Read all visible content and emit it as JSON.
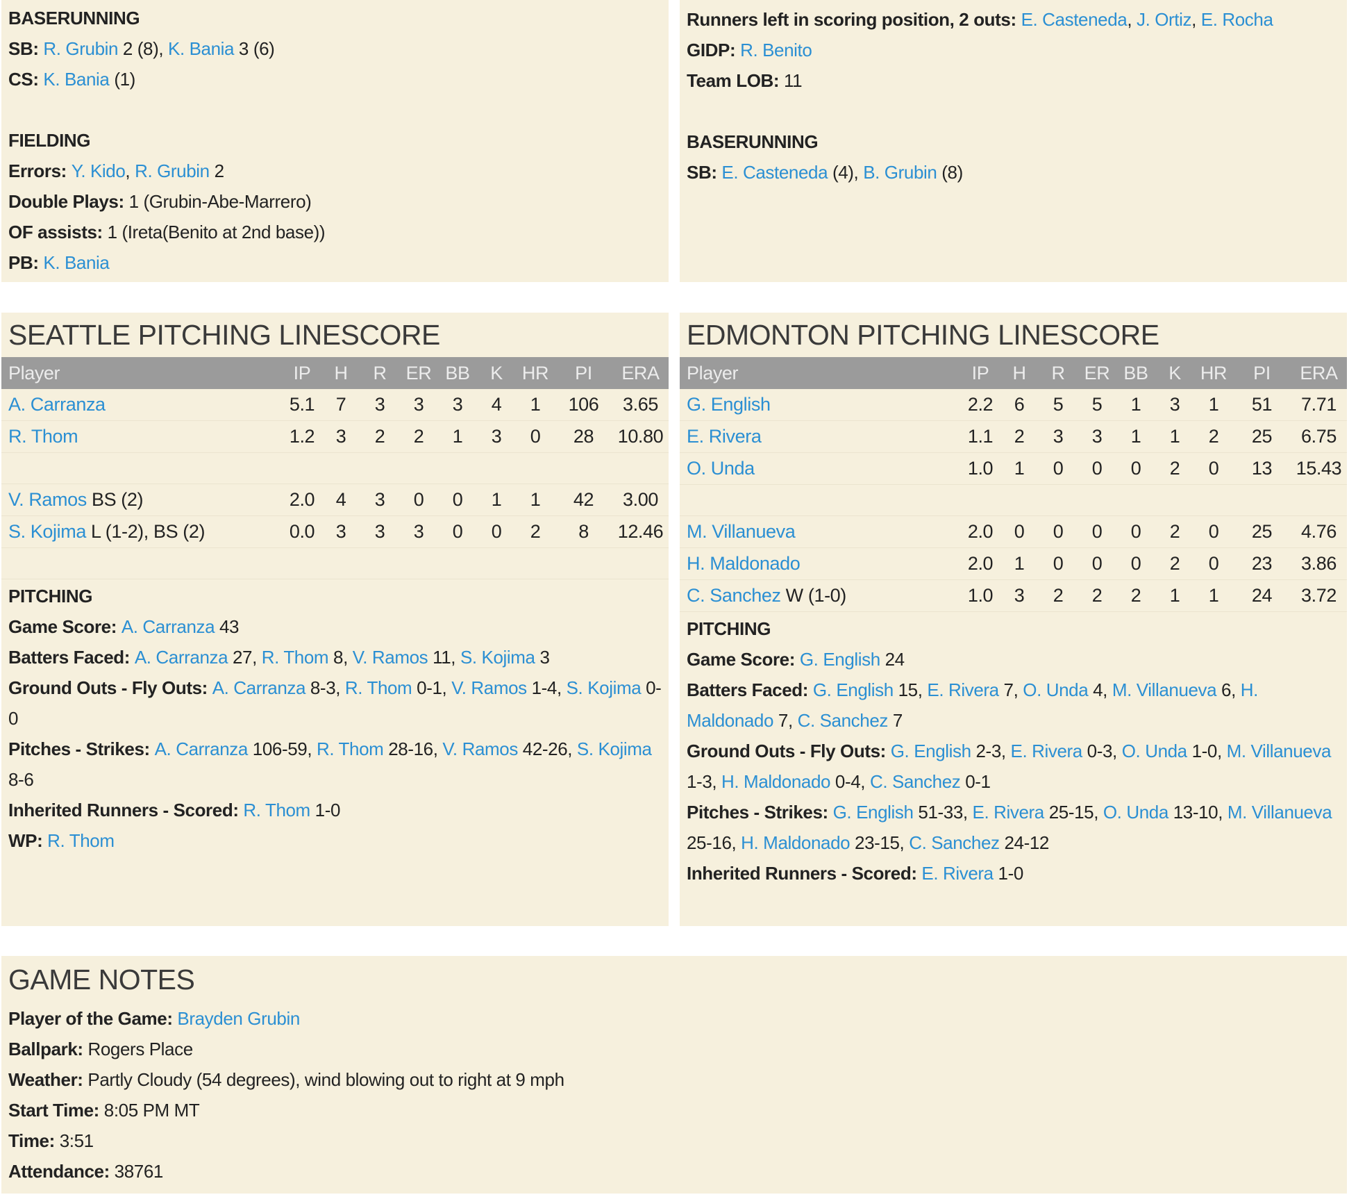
{
  "colors": {
    "background": "#f6f0dd",
    "link": "#2b8fd3",
    "table_header": "#9b9b9b"
  },
  "seattle_notes": [
    [
      {
        "b": "BASERUNNING"
      }
    ],
    [
      {
        "b": "SB: "
      },
      {
        "a": "R. Grubin"
      },
      {
        "t": " 2 (8), "
      },
      {
        "a": "K. Bania"
      },
      {
        "t": " 3 (6)"
      }
    ],
    [
      {
        "b": "CS: "
      },
      {
        "a": "K. Bania"
      },
      {
        "t": " (1)"
      }
    ],
    [],
    [
      {
        "b": "FIELDING"
      }
    ],
    [
      {
        "b": "Errors: "
      },
      {
        "a": "Y. Kido"
      },
      {
        "t": ", "
      },
      {
        "a": "R. Grubin"
      },
      {
        "t": " 2"
      }
    ],
    [
      {
        "b": "Double Plays: "
      },
      {
        "t": "1 (Grubin-Abe-Marrero)"
      }
    ],
    [
      {
        "b": "OF assists: "
      },
      {
        "t": "1 (Ireta(Benito at 2nd base))"
      }
    ],
    [
      {
        "b": "PB: "
      },
      {
        "a": "K. Bania"
      }
    ]
  ],
  "edmonton_notes": [
    [
      {
        "b": "Runners left in scoring position, 2 outs: "
      },
      {
        "a": "E. Casteneda"
      },
      {
        "t": ", "
      },
      {
        "a": "J. Ortiz"
      },
      {
        "t": ", "
      },
      {
        "a": "E. Rocha"
      }
    ],
    [
      {
        "b": "GIDP: "
      },
      {
        "a": "R. Benito"
      }
    ],
    [
      {
        "b": "Team LOB: "
      },
      {
        "t": "11"
      }
    ],
    [],
    [
      {
        "b": "BASERUNNING"
      }
    ],
    [
      {
        "b": "SB: "
      },
      {
        "a": "E. Casteneda"
      },
      {
        "t": " (4), "
      },
      {
        "a": "B. Grubin"
      },
      {
        "t": " (8)"
      }
    ]
  ],
  "columns": [
    "Player",
    "IP",
    "H",
    "R",
    "ER",
    "BB",
    "K",
    "HR",
    "PI",
    "ERA"
  ],
  "seattle": {
    "title": "SEATTLE PITCHING LINESCORE",
    "rows": [
      {
        "player": "A. Carranza",
        "note": "",
        "stats": [
          "5.1",
          "7",
          "3",
          "3",
          "3",
          "4",
          "1",
          "106",
          "3.65"
        ]
      },
      {
        "player": "R. Thom",
        "note": "",
        "stats": [
          "1.2",
          "3",
          "2",
          "2",
          "1",
          "3",
          "0",
          "28",
          "10.80"
        ]
      },
      {
        "spacer": true
      },
      {
        "player": "V. Ramos",
        "note": " BS (2)",
        "stats": [
          "2.0",
          "4",
          "3",
          "0",
          "0",
          "1",
          "1",
          "42",
          "3.00"
        ]
      },
      {
        "player": "S. Kojima",
        "note": " L (1-2), BS (2)",
        "stats": [
          "0.0",
          "3",
          "3",
          "3",
          "0",
          "0",
          "2",
          "8",
          "12.46"
        ]
      },
      {
        "spacer": true
      }
    ],
    "pitching": [
      [
        {
          "b": "PITCHING"
        }
      ],
      [
        {
          "b": "Game Score: "
        },
        {
          "a": "A. Carranza"
        },
        {
          "t": " 43"
        }
      ],
      [
        {
          "b": "Batters Faced: "
        },
        {
          "a": "A. Carranza"
        },
        {
          "t": " 27, "
        },
        {
          "a": "R. Thom"
        },
        {
          "t": " 8, "
        },
        {
          "a": "V. Ramos"
        },
        {
          "t": " 11, "
        },
        {
          "a": "S. Kojima"
        },
        {
          "t": " 3"
        }
      ],
      [
        {
          "b": "Ground Outs - Fly Outs: "
        },
        {
          "a": "A. Carranza"
        },
        {
          "t": " 8-3, "
        },
        {
          "a": "R. Thom"
        },
        {
          "t": " 0-1, "
        },
        {
          "a": "V. Ramos"
        },
        {
          "t": " 1-4, "
        },
        {
          "a": "S. Kojima"
        },
        {
          "t": " 0-0"
        }
      ],
      [
        {
          "b": "Pitches - Strikes: "
        },
        {
          "a": "A. Carranza"
        },
        {
          "t": " 106-59, "
        },
        {
          "a": "R. Thom"
        },
        {
          "t": " 28-16, "
        },
        {
          "a": "V. Ramos"
        },
        {
          "t": " 42-26, "
        },
        {
          "a": "S. Kojima"
        },
        {
          "t": " 8-6"
        }
      ],
      [
        {
          "b": "Inherited Runners - Scored: "
        },
        {
          "a": "R. Thom"
        },
        {
          "t": " 1-0"
        }
      ],
      [
        {
          "b": "WP: "
        },
        {
          "a": "R. Thom"
        }
      ]
    ]
  },
  "edmonton": {
    "title": "EDMONTON PITCHING LINESCORE",
    "rows": [
      {
        "player": "G. English",
        "note": "",
        "stats": [
          "2.2",
          "6",
          "5",
          "5",
          "1",
          "3",
          "1",
          "51",
          "7.71"
        ]
      },
      {
        "player": "E. Rivera",
        "note": "",
        "stats": [
          "1.1",
          "2",
          "3",
          "3",
          "1",
          "1",
          "2",
          "25",
          "6.75"
        ]
      },
      {
        "player": "O. Unda",
        "note": "",
        "stats": [
          "1.0",
          "1",
          "0",
          "0",
          "0",
          "2",
          "0",
          "13",
          "15.43"
        ]
      },
      {
        "spacer": true
      },
      {
        "player": "M. Villanueva",
        "note": "",
        "stats": [
          "2.0",
          "0",
          "0",
          "0",
          "0",
          "2",
          "0",
          "25",
          "4.76"
        ]
      },
      {
        "player": "H. Maldonado",
        "note": "",
        "stats": [
          "2.0",
          "1",
          "0",
          "0",
          "0",
          "2",
          "0",
          "23",
          "3.86"
        ]
      },
      {
        "player": "C. Sanchez",
        "note": " W (1-0)",
        "stats": [
          "1.0",
          "3",
          "2",
          "2",
          "2",
          "1",
          "1",
          "24",
          "3.72"
        ]
      }
    ],
    "pitching": [
      [
        {
          "b": "PITCHING"
        }
      ],
      [
        {
          "b": "Game Score: "
        },
        {
          "a": "G. English"
        },
        {
          "t": " 24"
        }
      ],
      [
        {
          "b": "Batters Faced: "
        },
        {
          "a": "G. English"
        },
        {
          "t": " 15, "
        },
        {
          "a": "E. Rivera"
        },
        {
          "t": " 7, "
        },
        {
          "a": "O. Unda"
        },
        {
          "t": " 4, "
        },
        {
          "a": "M. Villanueva"
        },
        {
          "t": " 6, "
        },
        {
          "a": "H. Maldonado"
        },
        {
          "t": " 7, "
        },
        {
          "a": "C. Sanchez"
        },
        {
          "t": " 7"
        }
      ],
      [
        {
          "b": "Ground Outs - Fly Outs: "
        },
        {
          "a": "G. English"
        },
        {
          "t": " 2-3, "
        },
        {
          "a": "E. Rivera"
        },
        {
          "t": " 0-3, "
        },
        {
          "a": "O. Unda"
        },
        {
          "t": " 1-0, "
        },
        {
          "a": "M. Villanueva"
        },
        {
          "t": " 1-3, "
        },
        {
          "a": "H. Maldonado"
        },
        {
          "t": " 0-4, "
        },
        {
          "a": "C. Sanchez"
        },
        {
          "t": " 0-1"
        }
      ],
      [
        {
          "b": "Pitches - Strikes: "
        },
        {
          "a": "G. English"
        },
        {
          "t": " 51-33, "
        },
        {
          "a": "E. Rivera"
        },
        {
          "t": " 25-15, "
        },
        {
          "a": "O. Unda"
        },
        {
          "t": " 13-10, "
        },
        {
          "a": "M. Villanueva"
        },
        {
          "t": " 25-16, "
        },
        {
          "a": "H. Maldonado"
        },
        {
          "t": " 23-15, "
        },
        {
          "a": "C. Sanchez"
        },
        {
          "t": " 24-12"
        }
      ],
      [
        {
          "b": "Inherited Runners - Scored: "
        },
        {
          "a": "E. Rivera"
        },
        {
          "t": " 1-0"
        }
      ]
    ]
  },
  "game_notes": {
    "title": "GAME NOTES",
    "lines": [
      [
        {
          "b": "Player of the Game: "
        },
        {
          "a": "Brayden Grubin"
        }
      ],
      [
        {
          "b": "Ballpark: "
        },
        {
          "t": "Rogers Place"
        }
      ],
      [
        {
          "b": "Weather: "
        },
        {
          "t": "Partly Cloudy (54 degrees), wind blowing out to right at 9 mph"
        }
      ],
      [
        {
          "b": "Start Time: "
        },
        {
          "t": "8:05 PM MT"
        }
      ],
      [
        {
          "b": "Time: "
        },
        {
          "t": "3:51"
        }
      ],
      [
        {
          "b": "Attendance: "
        },
        {
          "t": "38761"
        }
      ]
    ]
  }
}
